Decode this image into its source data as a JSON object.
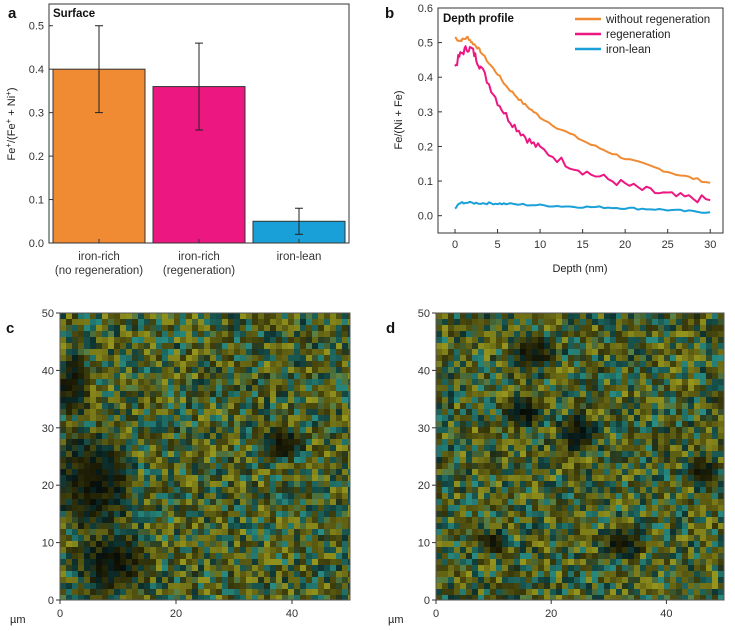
{
  "panels": {
    "a": "a",
    "b": "b",
    "c": "c",
    "d": "d"
  },
  "colors": {
    "orange": "#F08A33",
    "pink": "#EC1781",
    "blue": "#1AA0D8"
  },
  "chart_data": [
    {
      "id": "a",
      "type": "bar",
      "title": "Surface",
      "ylabel": "Fe+/(Fe+ + Ni+)",
      "ylabel_parts": {
        "fe": "Fe",
        "sup1": "+",
        "mid": "/(Fe",
        "sup2": "+",
        "mid2": " + Ni",
        "sup3": "+",
        "end": ")"
      },
      "categories": [
        [
          "iron-rich",
          "(no regeneration)"
        ],
        [
          "iron-rich",
          "(regeneration)"
        ],
        [
          "iron-lean"
        ]
      ],
      "values": [
        0.4,
        0.36,
        0.05
      ],
      "errors": [
        0.1,
        0.1,
        0.03
      ],
      "bar_colors": [
        "#F08A33",
        "#EC1781",
        "#1AA0D8"
      ],
      "ylim": [
        0,
        0.55
      ],
      "yticks": [
        0.0,
        0.1,
        0.2,
        0.3,
        0.4,
        0.5
      ],
      "ytick_labels": [
        "0.0",
        "0.1",
        "0.2",
        "0.3",
        "0.4",
        "0.5"
      ]
    },
    {
      "id": "b",
      "type": "line",
      "title": "Depth profile",
      "xlabel": "Depth (nm)",
      "ylabel": "Fe/(Ni + Fe)",
      "xlim": [
        -2,
        31.5
      ],
      "ylim": [
        -0.05,
        0.6
      ],
      "xticks": [
        0,
        5,
        10,
        15,
        20,
        25,
        30
      ],
      "xtick_labels": [
        "0",
        "5",
        "10",
        "15",
        "20",
        "25",
        "30"
      ],
      "yticks": [
        0.0,
        0.1,
        0.2,
        0.3,
        0.4,
        0.5,
        0.6
      ],
      "ytick_labels": [
        "0.0",
        "0.1",
        "0.2",
        "0.3",
        "0.4",
        "0.5",
        "0.6"
      ],
      "legend_position": "top-right",
      "series": [
        {
          "name": "without regeneration",
          "color": "#F08A33",
          "x": [
            0,
            0.5,
            1,
            1.5,
            2,
            2.5,
            3,
            4,
            5,
            6,
            7,
            8,
            9,
            10,
            12,
            14,
            16,
            18,
            20,
            22,
            24,
            26,
            28,
            30
          ],
          "y": [
            0.515,
            0.505,
            0.51,
            0.515,
            0.5,
            0.49,
            0.475,
            0.44,
            0.41,
            0.375,
            0.35,
            0.325,
            0.305,
            0.285,
            0.255,
            0.23,
            0.205,
            0.185,
            0.165,
            0.15,
            0.135,
            0.12,
            0.108,
            0.095
          ]
        },
        {
          "name": "regeneration",
          "color": "#EC1781",
          "x": [
            0,
            0.5,
            1,
            1.5,
            2,
            2.5,
            3,
            4,
            5,
            6,
            7,
            8,
            9,
            10,
            12,
            14,
            16,
            18,
            20,
            22,
            24,
            26,
            28,
            30
          ],
          "y": [
            0.43,
            0.46,
            0.475,
            0.485,
            0.48,
            0.455,
            0.43,
            0.38,
            0.33,
            0.29,
            0.26,
            0.235,
            0.21,
            0.195,
            0.165,
            0.14,
            0.12,
            0.105,
            0.09,
            0.075,
            0.065,
            0.055,
            0.05,
            0.045
          ]
        },
        {
          "name": "iron-lean",
          "color": "#1AA0D8",
          "x": [
            0,
            0.5,
            1,
            2,
            3,
            4,
            5,
            6,
            8,
            10,
            12,
            14,
            16,
            18,
            20,
            22,
            24,
            26,
            28,
            30
          ],
          "y": [
            0.02,
            0.035,
            0.038,
            0.037,
            0.036,
            0.036,
            0.035,
            0.034,
            0.032,
            0.03,
            0.028,
            0.026,
            0.025,
            0.024,
            0.022,
            0.02,
            0.018,
            0.015,
            0.012,
            0.01
          ]
        }
      ]
    },
    {
      "id": "c",
      "type": "heatmap",
      "xunit": "µm",
      "xlim": [
        0,
        50
      ],
      "ylim": [
        0,
        50
      ],
      "xticks": [
        0,
        20,
        40
      ],
      "xtick_labels": [
        "0",
        "20",
        "40"
      ],
      "yticks": [
        0,
        10,
        20,
        30,
        40,
        50
      ],
      "ytick_labels": [
        "0",
        "10",
        "20",
        "30",
        "40",
        "50"
      ]
    },
    {
      "id": "d",
      "type": "heatmap",
      "xunit": "µm",
      "xlim": [
        0,
        50
      ],
      "ylim": [
        0,
        50
      ],
      "xticks": [
        0,
        20,
        40
      ],
      "xtick_labels": [
        "0",
        "20",
        "40"
      ],
      "yticks": [
        0,
        10,
        20,
        30,
        40,
        50
      ],
      "ytick_labels": [
        "0",
        "10",
        "20",
        "30",
        "40",
        "50"
      ]
    }
  ]
}
